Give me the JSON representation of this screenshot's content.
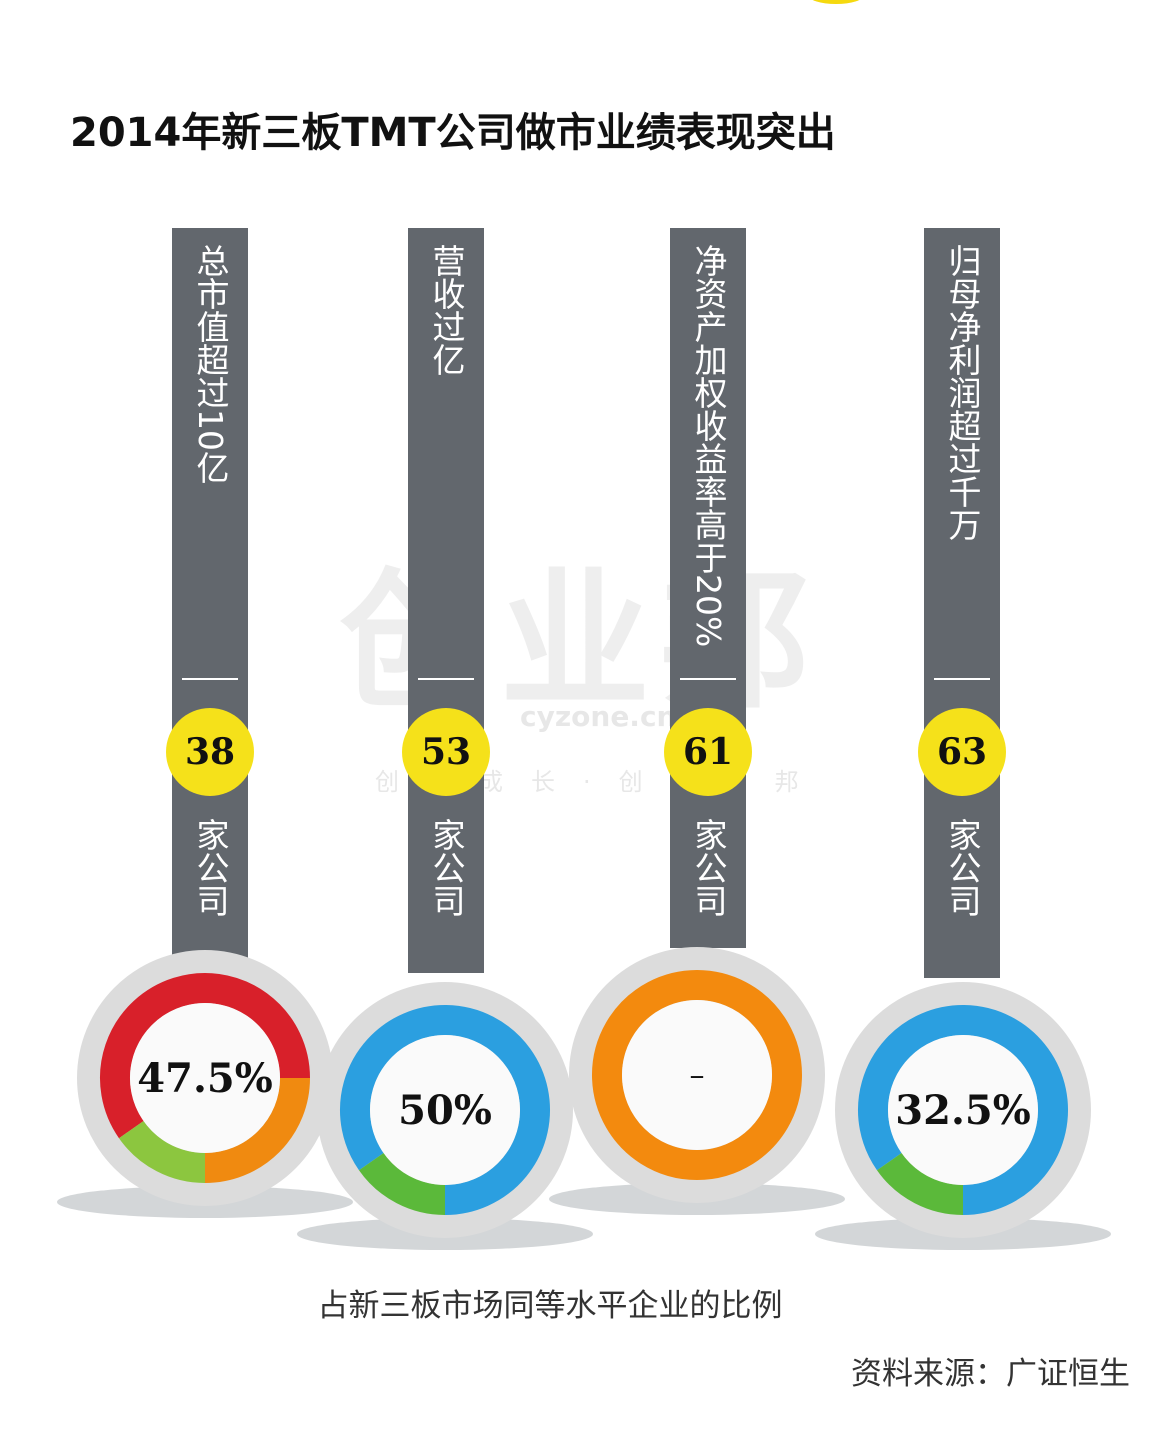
{
  "title": "2014年新三板TMT公司做市业绩表现突出",
  "watermark": {
    "logo": "创业邦",
    "site": "cyzone.cn",
    "slogan": "创新成长·创业兴邦"
  },
  "chart_data": {
    "type": "donut",
    "title": "2014年新三板TMT公司做市业绩表现突出",
    "caption": "占新三板市场同等水平企业的比例",
    "source": "资料来源：广证恒生",
    "items": [
      {
        "label": "总市值超过10亿",
        "count": "38",
        "unit": "家公司",
        "pct_label": "47.5%",
        "value": 47.5,
        "segments": [
          {
            "color": "#d8202a",
            "from": 235,
            "to": 450
          },
          {
            "color": "#f08a10",
            "from": 90,
            "to": 180
          },
          {
            "color": "#8cc63f",
            "from": 180,
            "to": 235
          }
        ]
      },
      {
        "label": "营收过亿",
        "count": "53",
        "unit": "家公司",
        "pct_label": "50%",
        "value": 50,
        "segments": [
          {
            "color": "#2b9fe0",
            "from": 235,
            "to": 540
          },
          {
            "color": "#5bb93a",
            "from": 180,
            "to": 235
          }
        ]
      },
      {
        "label": "净资产加权收益率高于20%",
        "count": "61",
        "unit": "家公司",
        "pct_label": "–",
        "value": null,
        "segments": [
          {
            "color": "#f38a0e",
            "from": 0,
            "to": 360
          }
        ]
      },
      {
        "label": "归母净利润超过千万",
        "count": "63",
        "unit": "家公司",
        "pct_label": "32.5%",
        "value": 32.5,
        "segments": [
          {
            "color": "#2b9fe0",
            "from": 235,
            "to": 540
          },
          {
            "color": "#5bb93a",
            "from": 180,
            "to": 235
          }
        ]
      }
    ]
  }
}
